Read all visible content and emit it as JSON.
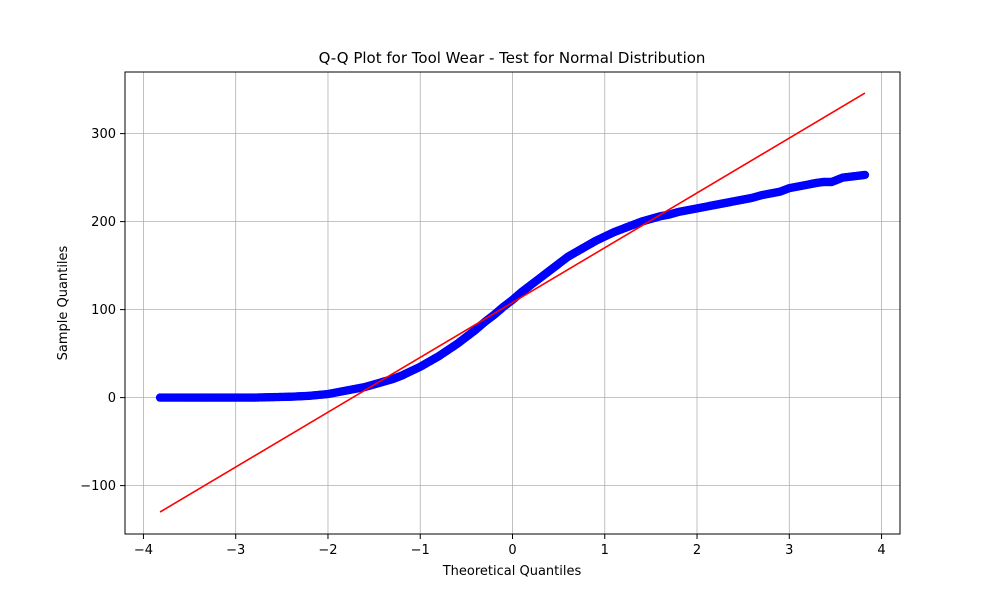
{
  "chart_data": {
    "type": "scatter",
    "title": "Q-Q Plot for Tool Wear - Test for Normal Distribution",
    "xlabel": "Theoretical Quantiles",
    "ylabel": "Sample Quantiles",
    "xlim": [
      -4.2,
      4.2
    ],
    "ylim": [
      -155,
      370
    ],
    "xticks": [
      -4,
      -3,
      -2,
      -1,
      0,
      1,
      2,
      3,
      4
    ],
    "yticks": [
      -100,
      0,
      100,
      200,
      300
    ],
    "grid": true,
    "colors": {
      "points": "#0000ff",
      "line": "#ff0000",
      "grid": "#b0b0b0",
      "axis": "#000000"
    },
    "series": [
      {
        "type": "scatter",
        "points": [
          [
            -3.82,
            0
          ],
          [
            -3.58,
            0
          ],
          [
            -3.46,
            0
          ],
          [
            -3.37,
            0
          ],
          [
            -3.3,
            0
          ],
          [
            -3.24,
            0
          ],
          [
            -3.18,
            0
          ],
          [
            -3.12,
            0
          ],
          [
            -3.0,
            0
          ],
          [
            -2.8,
            0
          ],
          [
            -2.6,
            0.5
          ],
          [
            -2.4,
            1
          ],
          [
            -2.2,
            2
          ],
          [
            -2.1,
            3
          ],
          [
            -2.0,
            4
          ],
          [
            -1.9,
            6
          ],
          [
            -1.8,
            8
          ],
          [
            -1.7,
            10
          ],
          [
            -1.6,
            12
          ],
          [
            -1.5,
            15
          ],
          [
            -1.4,
            18
          ],
          [
            -1.3,
            21
          ],
          [
            -1.2,
            25
          ],
          [
            -1.1,
            30
          ],
          [
            -1.0,
            35
          ],
          [
            -0.9,
            41
          ],
          [
            -0.8,
            47
          ],
          [
            -0.7,
            54
          ],
          [
            -0.6,
            61
          ],
          [
            -0.5,
            69
          ],
          [
            -0.4,
            77
          ],
          [
            -0.3,
            86
          ],
          [
            -0.2,
            94
          ],
          [
            -0.1,
            103
          ],
          [
            0.0,
            111
          ],
          [
            0.1,
            120
          ],
          [
            0.2,
            128
          ],
          [
            0.3,
            136
          ],
          [
            0.4,
            144
          ],
          [
            0.5,
            152
          ],
          [
            0.6,
            160
          ],
          [
            0.7,
            166
          ],
          [
            0.8,
            172
          ],
          [
            0.9,
            178
          ],
          [
            1.0,
            183
          ],
          [
            1.1,
            188
          ],
          [
            1.2,
            192
          ],
          [
            1.3,
            196
          ],
          [
            1.4,
            200
          ],
          [
            1.5,
            203
          ],
          [
            1.6,
            206
          ],
          [
            1.7,
            208
          ],
          [
            1.8,
            211
          ],
          [
            1.9,
            213
          ],
          [
            2.0,
            215
          ],
          [
            2.1,
            217
          ],
          [
            2.2,
            219
          ],
          [
            2.3,
            221
          ],
          [
            2.4,
            223
          ],
          [
            2.5,
            225
          ],
          [
            2.6,
            227
          ],
          [
            2.7,
            230
          ],
          [
            2.8,
            232
          ],
          [
            2.9,
            234
          ],
          [
            3.0,
            238
          ],
          [
            3.1,
            240
          ],
          [
            3.2,
            242
          ],
          [
            3.3,
            244
          ],
          [
            3.37,
            245
          ],
          [
            3.46,
            245
          ],
          [
            3.58,
            250
          ],
          [
            3.82,
            253
          ]
        ]
      },
      {
        "type": "line",
        "points": [
          [
            -3.82,
            -130
          ],
          [
            3.82,
            346
          ]
        ]
      }
    ]
  }
}
